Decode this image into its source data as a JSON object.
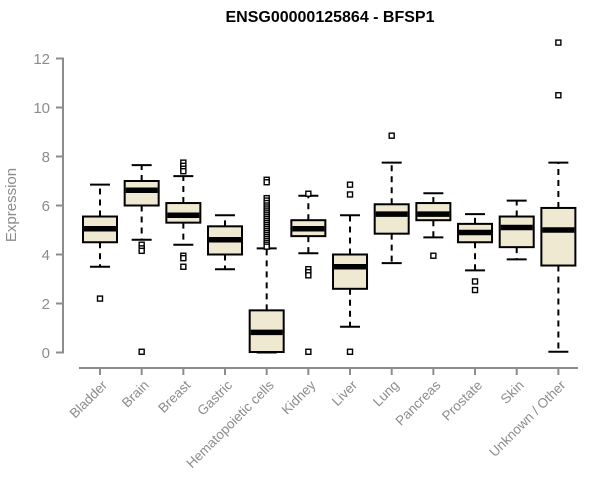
{
  "title": "ENSG00000125864 - BFSP1",
  "colors": {
    "background": "#FFFFFF",
    "box_fill": "#F0E9D2",
    "box_stroke": "#000000",
    "median": "#000000",
    "whisker": "#000000",
    "outlier_fill": "#FFFFFF",
    "outlier_stroke": "#000000",
    "axis": "#8C8C8C",
    "tick_label": "#8C8C8C",
    "title_color": "#000000"
  },
  "chart_data": {
    "type": "boxplot",
    "title": "ENSG00000125864 - BFSP1",
    "xlabel": "",
    "ylabel": "Expression",
    "ylim": [
      0,
      12.8
    ],
    "yticks": [
      0,
      2,
      4,
      6,
      8,
      10,
      12
    ],
    "grid": false,
    "legend": false,
    "categories": [
      "Bladder",
      "Brain",
      "Breast",
      "Gastric",
      "Hematopoietic cells",
      "Kidney",
      "Liver",
      "Lung",
      "Pancreas",
      "Prostate",
      "Skin",
      "Unknown / Other"
    ],
    "series": [
      {
        "name": "Bladder",
        "whisker_low": 3.5,
        "q1": 4.5,
        "median": 5.05,
        "q3": 5.55,
        "whisker_high": 6.85,
        "outliers": [
          2.2
        ]
      },
      {
        "name": "Brain",
        "whisker_low": 4.6,
        "q1": 6.0,
        "median": 6.62,
        "q3": 7.0,
        "whisker_high": 7.65,
        "outliers": [
          4.4,
          4.25,
          4.15,
          0.03
        ]
      },
      {
        "name": "Breast",
        "whisker_low": 4.4,
        "q1": 5.3,
        "median": 5.6,
        "q3": 6.1,
        "whisker_high": 7.2,
        "outliers": [
          7.75,
          7.62,
          7.5,
          7.4,
          3.95,
          3.85,
          3.5
        ]
      },
      {
        "name": "Gastric",
        "whisker_low": 3.4,
        "q1": 4.0,
        "median": 4.6,
        "q3": 5.15,
        "whisker_high": 5.6,
        "outliers": []
      },
      {
        "name": "Hematopoietic cells",
        "whisker_low": 0.0,
        "q1": 0.02,
        "median": 0.82,
        "q3": 1.72,
        "whisker_high": 4.25,
        "outliers": [
          7.05,
          6.95,
          6.3,
          6.2,
          6.1,
          6.0,
          5.92,
          5.84,
          5.76,
          5.68,
          5.6,
          5.52,
          5.44,
          5.36,
          5.28,
          5.2,
          5.12,
          5.04,
          4.96,
          4.88,
          4.8,
          4.72,
          4.64,
          4.56,
          4.48,
          4.4,
          4.32
        ]
      },
      {
        "name": "Kidney",
        "whisker_low": 4.05,
        "q1": 4.75,
        "median": 5.05,
        "q3": 5.4,
        "whisker_high": 6.4,
        "outliers": [
          6.48,
          3.4,
          3.28,
          3.15,
          0.03
        ]
      },
      {
        "name": "Liver",
        "whisker_low": 1.05,
        "q1": 2.6,
        "median": 3.5,
        "q3": 4.0,
        "whisker_high": 5.6,
        "outliers": [
          6.85,
          6.45,
          0.03
        ]
      },
      {
        "name": "Lung",
        "whisker_low": 3.65,
        "q1": 4.85,
        "median": 5.65,
        "q3": 6.05,
        "whisker_high": 7.75,
        "outliers": [
          8.85
        ]
      },
      {
        "name": "Pancreas",
        "whisker_low": 4.7,
        "q1": 5.4,
        "median": 5.65,
        "q3": 6.1,
        "whisker_high": 6.5,
        "outliers": [
          3.95
        ]
      },
      {
        "name": "Prostate",
        "whisker_low": 3.35,
        "q1": 4.5,
        "median": 4.9,
        "q3": 5.25,
        "whisker_high": 5.65,
        "outliers": [
          2.9,
          2.55
        ]
      },
      {
        "name": "Skin",
        "whisker_low": 3.8,
        "q1": 4.3,
        "median": 5.1,
        "q3": 5.55,
        "whisker_high": 6.2,
        "outliers": []
      },
      {
        "name": "Unknown / Other",
        "whisker_low": 0.03,
        "q1": 3.55,
        "median": 5.0,
        "q3": 5.9,
        "whisker_high": 7.75,
        "outliers": [
          12.65,
          10.5
        ]
      }
    ]
  }
}
